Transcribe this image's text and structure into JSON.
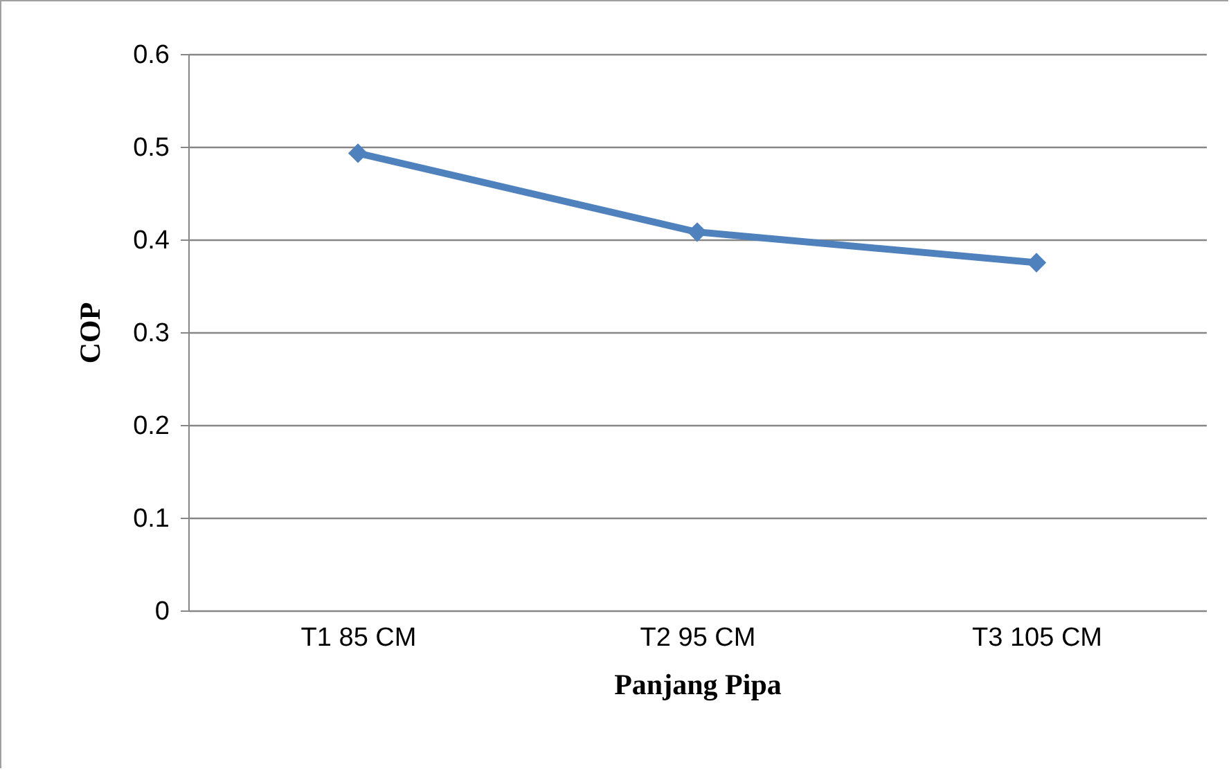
{
  "chart_data": {
    "type": "line",
    "xlabel": "Panjang Pipa",
    "ylabel": "COP",
    "categories": [
      "T1 85 CM",
      "T2 95 CM",
      "T3 105 CM"
    ],
    "series": [
      {
        "color": "#4f81bd",
        "values": [
          0.493,
          0.408,
          0.375
        ]
      }
    ],
    "ylim": [
      0,
      0.6
    ],
    "yticks": [
      0,
      0.1,
      0.2,
      0.3,
      0.4,
      0.5,
      0.6
    ],
    "grid": "y",
    "marker": "diamond",
    "legend": false
  }
}
